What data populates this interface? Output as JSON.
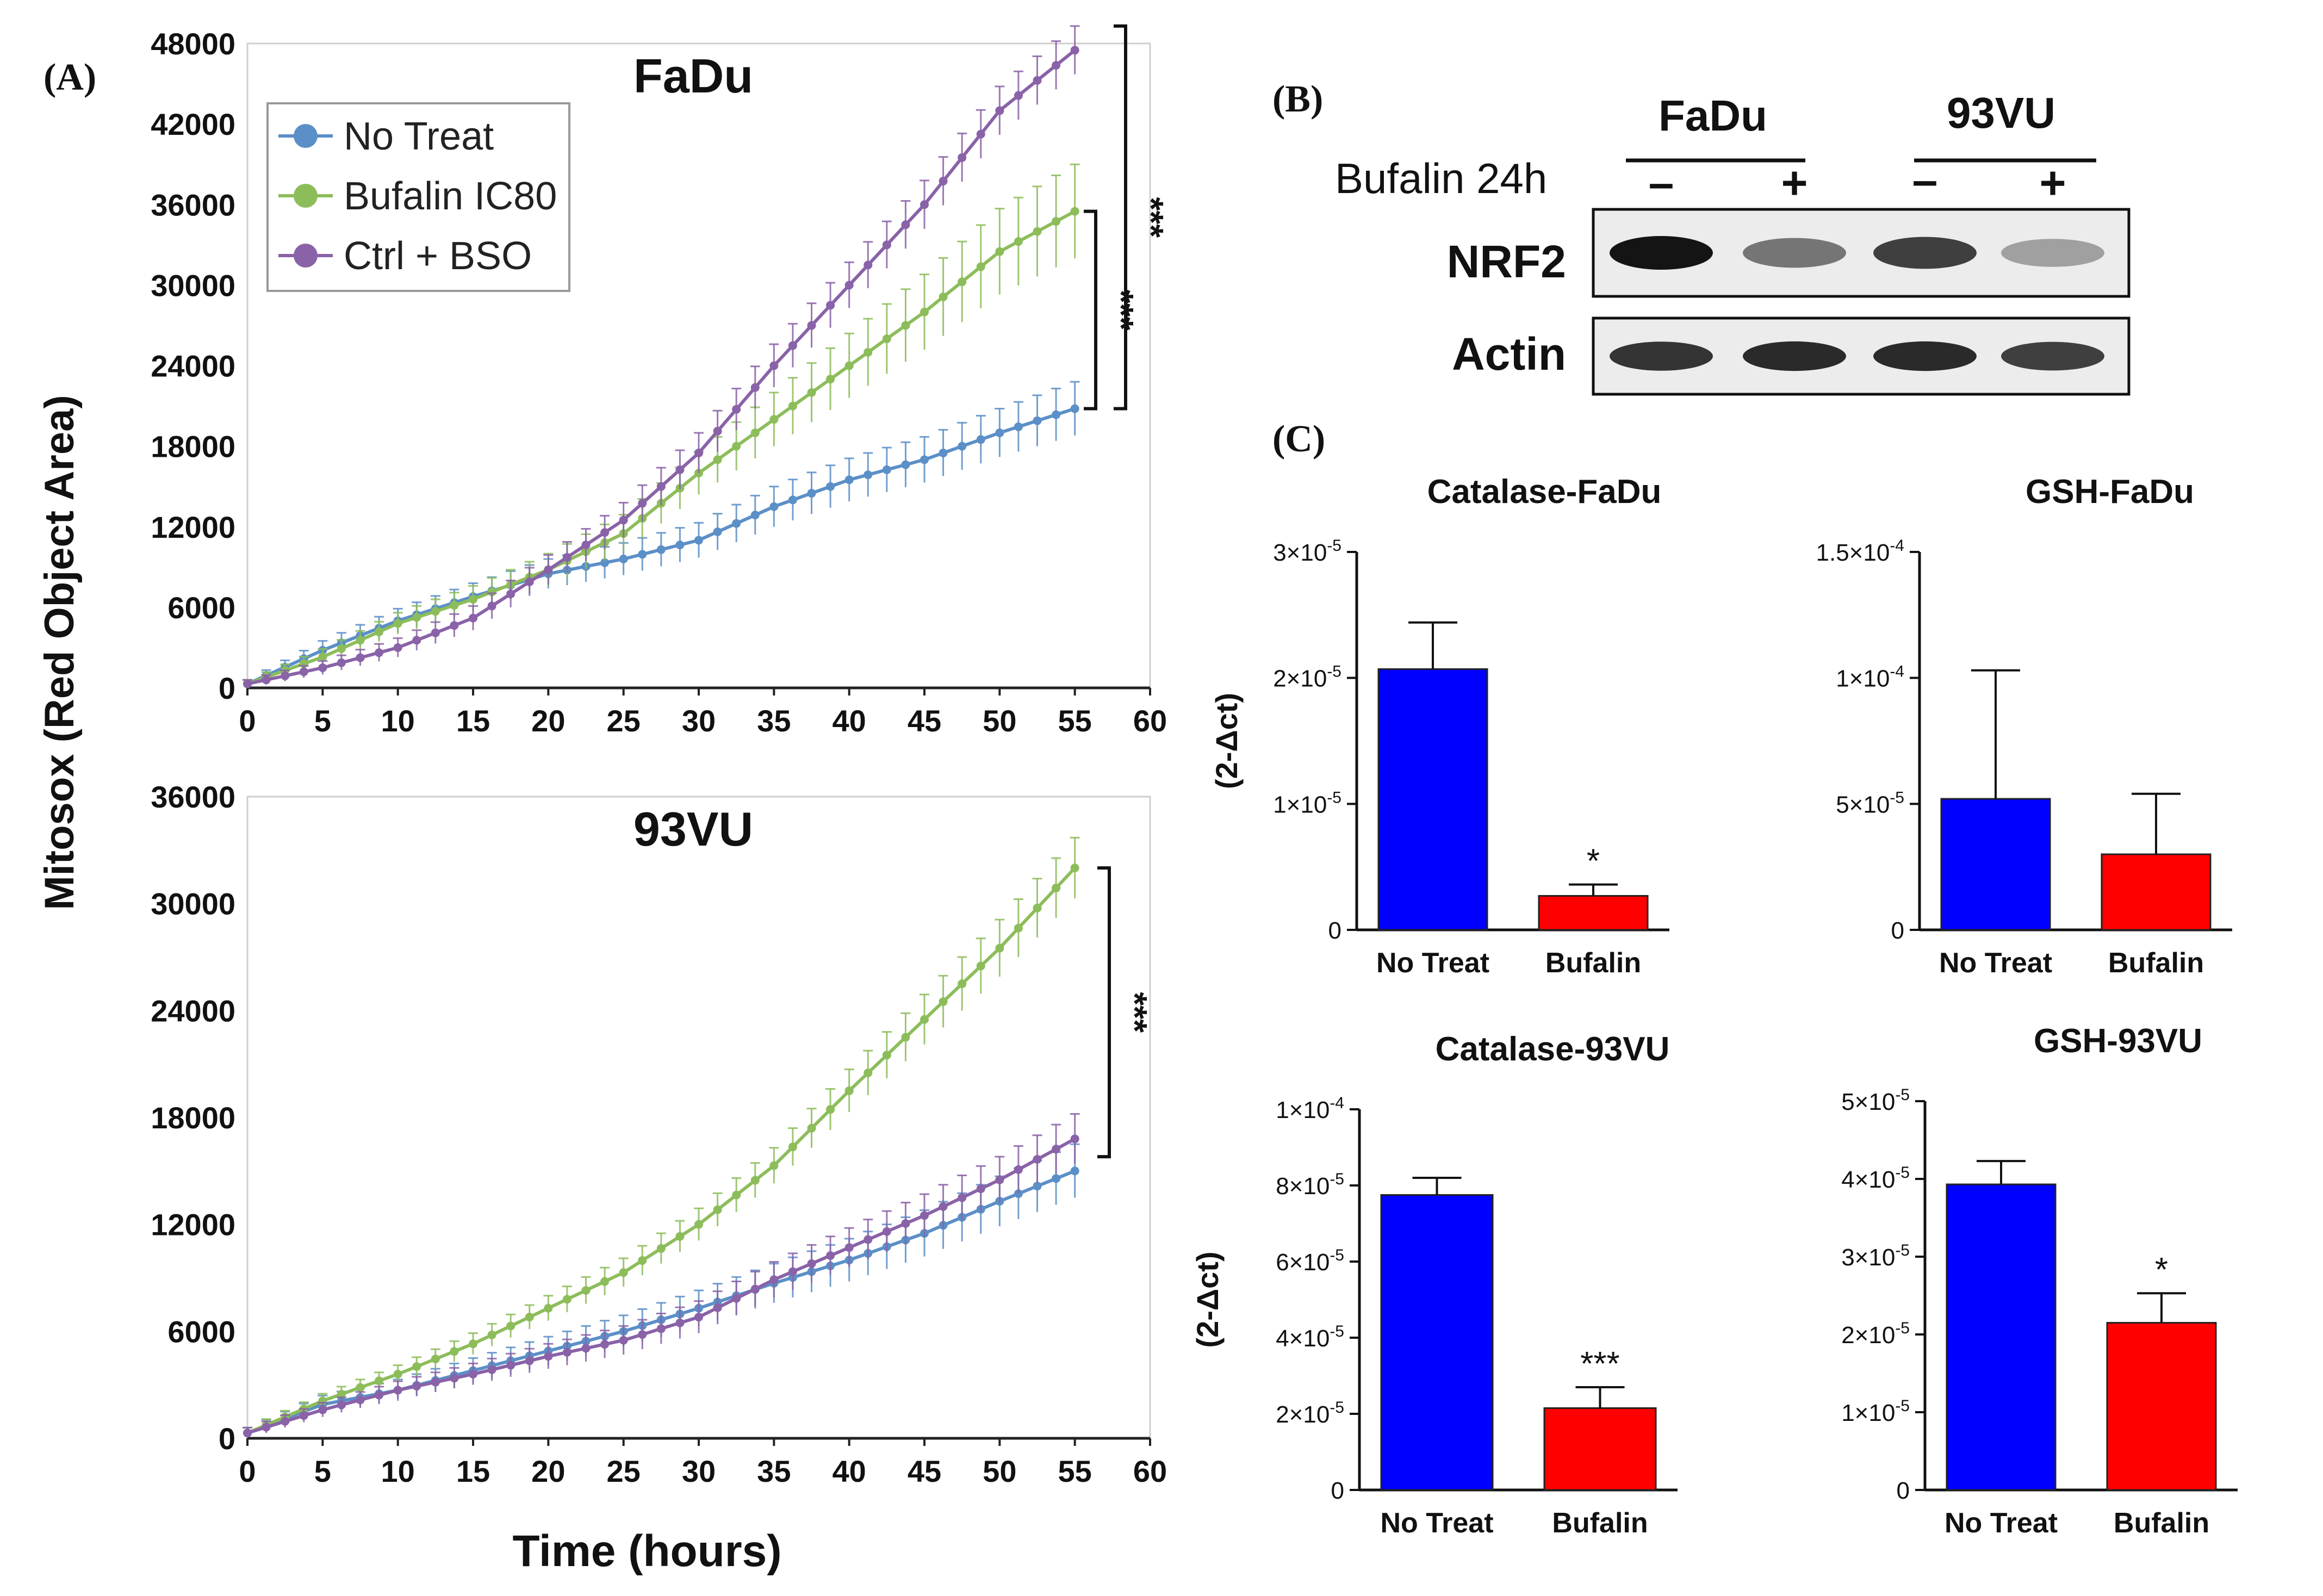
{
  "colors": {
    "no_treat": "#5b8fc7",
    "bufalin_ic80": "#8cbd5a",
    "ctrl_bso": "#8a62a8",
    "bar_no_treat": "#0000ff",
    "bar_bufalin": "#ff0000",
    "blot_bg": "#ececec"
  },
  "panel_labels": {
    "a": "(A)",
    "b": "(B)",
    "c": "(C)"
  },
  "panel_a": {
    "ylabel": "Mitosox (Red Object Area)",
    "xlabel": "Time (hours)"
  },
  "panel_b": {
    "col_labels": [
      "FaDu",
      "93VU"
    ],
    "treatment_label": "Bufalin 24h",
    "lane_signs": [
      "–",
      "+",
      "–",
      "+"
    ],
    "row_labels": [
      "NRF2",
      "Actin"
    ],
    "band_intensity": {
      "NRF2": [
        1.0,
        0.55,
        0.8,
        0.35
      ],
      "Actin": [
        0.85,
        0.9,
        0.9,
        0.8
      ]
    }
  },
  "chart_data": [
    {
      "type": "line",
      "title": "FaDu",
      "xlabel": "Time (hours)",
      "ylabel": "Mitosox (Red Object Area)",
      "xlim": [
        0,
        60
      ],
      "ylim": [
        0,
        48000
      ],
      "xticks": [
        "0",
        "5",
        "10",
        "15",
        "20",
        "25",
        "30",
        "35",
        "40",
        "45",
        "50",
        "55",
        "60"
      ],
      "yticks": [
        "0",
        "6000",
        "12000",
        "18000",
        "24000",
        "30000",
        "36000",
        "42000",
        "48000"
      ],
      "legend": {
        "position": "top-left",
        "entries": [
          "No Treat",
          "Bufalin IC80",
          "Ctrl + BSO"
        ]
      },
      "x": [
        0,
        5,
        10,
        15,
        20,
        25,
        30,
        35,
        40,
        45,
        50,
        55
      ],
      "series": [
        {
          "name": "No Treat",
          "values": [
            300,
            2800,
            5000,
            6800,
            8500,
            9600,
            11000,
            13500,
            15500,
            17000,
            19000,
            20800
          ],
          "err": [
            300,
            700,
            900,
            1000,
            1100,
            1200,
            1300,
            1500,
            1600,
            1700,
            1800,
            2000
          ]
        },
        {
          "name": "Bufalin IC80",
          "values": [
            300,
            2300,
            4800,
            6600,
            8800,
            11500,
            16000,
            20000,
            24000,
            28000,
            32500,
            35500
          ],
          "err": [
            300,
            600,
            800,
            1000,
            1200,
            1400,
            1600,
            2000,
            2400,
            2800,
            3200,
            3500
          ]
        },
        {
          "name": "Ctrl + BSO",
          "values": [
            300,
            1500,
            3000,
            5200,
            8800,
            12500,
            17500,
            24000,
            30000,
            36000,
            43000,
            47500
          ],
          "err": [
            300,
            500,
            700,
            900,
            1100,
            1300,
            1500,
            1600,
            1700,
            1800,
            1800,
            1800
          ]
        }
      ],
      "significance": [
        "***",
        "***"
      ]
    },
    {
      "type": "line",
      "title": "93VU",
      "xlabel": "Time (hours)",
      "ylabel": "Mitosox (Red Object Area)",
      "xlim": [
        0,
        60
      ],
      "ylim": [
        0,
        36000
      ],
      "xticks": [
        "0",
        "5",
        "10",
        "15",
        "20",
        "25",
        "30",
        "35",
        "40",
        "45",
        "50",
        "55",
        "60"
      ],
      "yticks": [
        "0",
        "6000",
        "12000",
        "18000",
        "24000",
        "30000",
        "36000"
      ],
      "x": [
        0,
        5,
        10,
        15,
        20,
        25,
        30,
        35,
        40,
        45,
        50,
        55
      ],
      "series": [
        {
          "name": "No Treat",
          "values": [
            300,
            1900,
            2700,
            3800,
            4900,
            6000,
            7300,
            8700,
            10000,
            11500,
            13300,
            15000
          ],
          "err": [
            300,
            500,
            600,
            700,
            800,
            900,
            1000,
            1100,
            1200,
            1300,
            1400,
            1500
          ]
        },
        {
          "name": "Bufalin IC80",
          "values": [
            300,
            2100,
            3600,
            5300,
            7300,
            9300,
            12000,
            15300,
            19500,
            23500,
            27500,
            32000
          ],
          "err": [
            300,
            400,
            500,
            600,
            700,
            800,
            900,
            1000,
            1200,
            1400,
            1600,
            1700
          ]
        },
        {
          "name": "Ctrl + BSO",
          "values": [
            300,
            1600,
            2700,
            3600,
            4600,
            5500,
            6800,
            8900,
            10700,
            12500,
            14500,
            16800
          ],
          "err": [
            300,
            400,
            500,
            600,
            700,
            800,
            900,
            1000,
            1100,
            1200,
            1300,
            1400
          ]
        }
      ],
      "significance": [
        "***"
      ]
    },
    {
      "type": "bar",
      "title": "Catalase-FaDu",
      "ylabel": "(2-Δct)",
      "categories": [
        "No Treat",
        "Bufalin"
      ],
      "values": [
        2.07e-05,
        2.7e-06
      ],
      "errors": [
        3.7e-06,
        9e-07
      ],
      "ylim": [
        0,
        3e-05
      ],
      "yticks": [
        {
          "v": 0,
          "m": "0",
          "e": ""
        },
        {
          "v": 1e-05,
          "m": "1×10",
          "e": "-5"
        },
        {
          "v": 2e-05,
          "m": "2×10",
          "e": "-5"
        },
        {
          "v": 3e-05,
          "m": "3×10",
          "e": "-5"
        }
      ],
      "significance": [
        "",
        "*"
      ]
    },
    {
      "type": "bar",
      "title": "GSH-FaDu",
      "ylabel": "",
      "categories": [
        "No Treat",
        "Bufalin"
      ],
      "values": [
        5.2e-05,
        3e-05
      ],
      "errors": [
        5.1e-05,
        2.4e-05
      ],
      "ylim": [
        0,
        0.00015
      ],
      "yticks": [
        {
          "v": 0,
          "m": "0",
          "e": ""
        },
        {
          "v": 5e-05,
          "m": "5×10",
          "e": "-5"
        },
        {
          "v": 0.0001,
          "m": "1×10",
          "e": "-4"
        },
        {
          "v": 0.00015,
          "m": "1.5×10",
          "e": "-4"
        }
      ],
      "significance": [
        "",
        ""
      ]
    },
    {
      "type": "bar",
      "title": "Catalase-93VU",
      "ylabel": "(2-Δct)",
      "categories": [
        "No Treat",
        "Bufalin"
      ],
      "values": [
        7.75e-05,
        2.15e-05
      ],
      "errors": [
        4.5e-06,
        5.5e-06
      ],
      "ylim": [
        0,
        0.0001
      ],
      "yticks": [
        {
          "v": 0,
          "m": "0",
          "e": ""
        },
        {
          "v": 2e-05,
          "m": "2×10",
          "e": "-5"
        },
        {
          "v": 4e-05,
          "m": "4×10",
          "e": "-5"
        },
        {
          "v": 6e-05,
          "m": "6×10",
          "e": "-5"
        },
        {
          "v": 8e-05,
          "m": "8×10",
          "e": "-5"
        },
        {
          "v": 0.0001,
          "m": "1×10",
          "e": "-4"
        }
      ],
      "significance": [
        "",
        "***"
      ]
    },
    {
      "type": "bar",
      "title": "GSH-93VU",
      "ylabel": "",
      "categories": [
        "No Treat",
        "Bufalin"
      ],
      "values": [
        3.93e-05,
        2.15e-05
      ],
      "errors": [
        3e-06,
        3.8e-06
      ],
      "ylim": [
        0,
        5e-05
      ],
      "yticks": [
        {
          "v": 0,
          "m": "0",
          "e": ""
        },
        {
          "v": 1e-05,
          "m": "1×10",
          "e": "-5"
        },
        {
          "v": 2e-05,
          "m": "2×10",
          "e": "-5"
        },
        {
          "v": 3e-05,
          "m": "3×10",
          "e": "-5"
        },
        {
          "v": 4e-05,
          "m": "4×10",
          "e": "-5"
        },
        {
          "v": 5e-05,
          "m": "5×10",
          "e": "-5"
        }
      ],
      "significance": [
        "",
        "*"
      ]
    }
  ]
}
